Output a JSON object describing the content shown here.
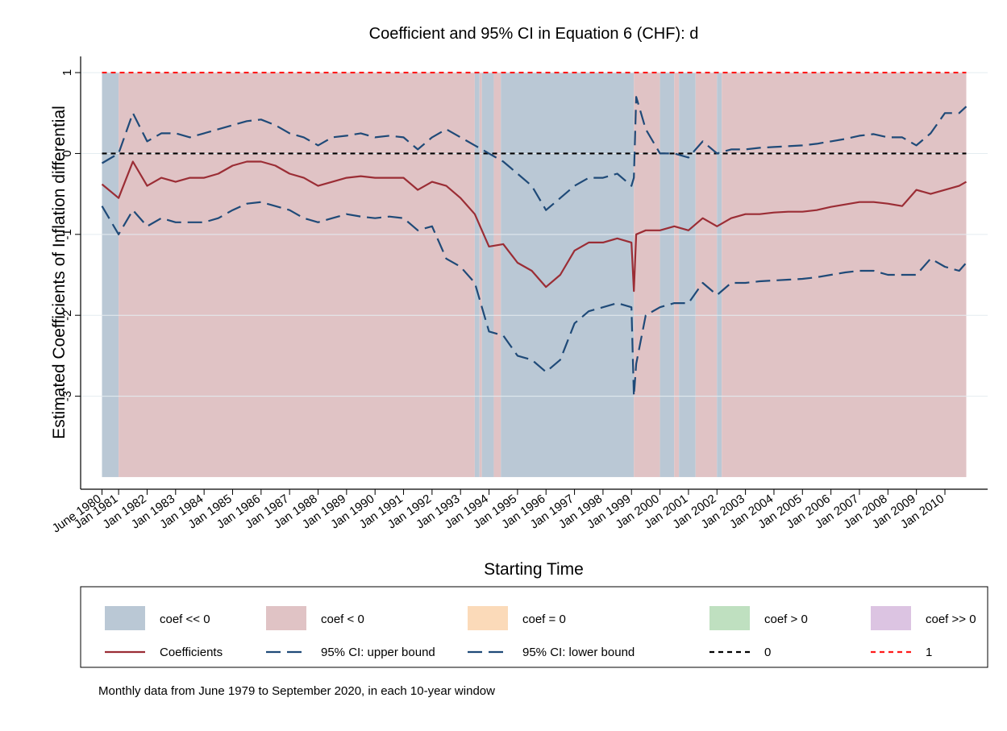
{
  "chart_data": {
    "type": "line",
    "title": "Coefficient and 95% CI in Equation 6 (CHF): d",
    "ylabel": "Estimated Coefficients of Inflation differential",
    "xlabel": "Starting Time",
    "note": "Monthly data from June 1979 to September 2020, in each 10-year window",
    "xlim": [
      "1979-09",
      "2011-07"
    ],
    "ylim": [
      -4.15,
      1.2
    ],
    "yticks": [
      -3,
      -2,
      -1,
      0,
      1
    ],
    "grid": true,
    "xticks": [
      {
        "value": "1980-06",
        "label": "June 1980"
      },
      {
        "value": "1981-01",
        "label": "Jan 1981"
      },
      {
        "value": "1982-01",
        "label": "Jan 1982"
      },
      {
        "value": "1983-01",
        "label": "Jan 1983"
      },
      {
        "value": "1984-01",
        "label": "Jan 1984"
      },
      {
        "value": "1985-01",
        "label": "Jan 1985"
      },
      {
        "value": "1986-01",
        "label": "Jan 1986"
      },
      {
        "value": "1987-01",
        "label": "Jan 1987"
      },
      {
        "value": "1988-01",
        "label": "Jan 1988"
      },
      {
        "value": "1989-01",
        "label": "Jan 1989"
      },
      {
        "value": "1990-01",
        "label": "Jan 1990"
      },
      {
        "value": "1991-01",
        "label": "Jan 1991"
      },
      {
        "value": "1992-01",
        "label": "Jan 1992"
      },
      {
        "value": "1993-01",
        "label": "Jan 1993"
      },
      {
        "value": "1994-01",
        "label": "Jan 1994"
      },
      {
        "value": "1995-01",
        "label": "Jan 1995"
      },
      {
        "value": "1996-01",
        "label": "Jan 1996"
      },
      {
        "value": "1997-01",
        "label": "Jan 1997"
      },
      {
        "value": "1998-01",
        "label": "Jan 1998"
      },
      {
        "value": "1999-01",
        "label": "Jan 1999"
      },
      {
        "value": "2000-01",
        "label": "Jan 2000"
      },
      {
        "value": "2001-01",
        "label": "Jan 2001"
      },
      {
        "value": "2002-01",
        "label": "Jan 2002"
      },
      {
        "value": "2003-01",
        "label": "Jan 2003"
      },
      {
        "value": "2004-01",
        "label": "Jan 2004"
      },
      {
        "value": "2005-01",
        "label": "Jan 2005"
      },
      {
        "value": "2006-01",
        "label": "Jan 2006"
      },
      {
        "value": "2007-01",
        "label": "Jan 2007"
      },
      {
        "value": "2008-01",
        "label": "Jan 2008"
      },
      {
        "value": "2009-01",
        "label": "Jan 2009"
      },
      {
        "value": "2010-01",
        "label": "Jan 2010"
      }
    ],
    "shade_range": [
      -4,
      1
    ],
    "region_classes": [
      {
        "name": "coef << 0",
        "color": "#bac8d5"
      },
      {
        "name": "coef < 0",
        "color": "#e0c3c5"
      },
      {
        "name": "coef = 0",
        "color": "#fbdab9"
      },
      {
        "name": "coef > 0",
        "color": "#bfe0c0"
      },
      {
        "name": "coef >> 0",
        "color": "#dcc4e2"
      }
    ],
    "regions": [
      {
        "start": "1980-06",
        "end": "1981-01",
        "class": "coef << 0"
      },
      {
        "start": "1981-01",
        "end": "1993-07",
        "class": "coef < 0"
      },
      {
        "start": "1993-07",
        "end": "1993-09",
        "class": "coef << 0"
      },
      {
        "start": "1993-09",
        "end": "1993-10",
        "class": "coef < 0"
      },
      {
        "start": "1993-10",
        "end": "1994-03",
        "class": "coef << 0"
      },
      {
        "start": "1994-03",
        "end": "1994-06",
        "class": "coef < 0"
      },
      {
        "start": "1994-06",
        "end": "1999-02",
        "class": "coef << 0"
      },
      {
        "start": "1999-02",
        "end": "2000-01",
        "class": "coef < 0"
      },
      {
        "start": "2000-01",
        "end": "2000-07",
        "class": "coef << 0"
      },
      {
        "start": "2000-07",
        "end": "2000-09",
        "class": "coef < 0"
      },
      {
        "start": "2000-09",
        "end": "2001-04",
        "class": "coef << 0"
      },
      {
        "start": "2001-04",
        "end": "2002-01",
        "class": "coef < 0"
      },
      {
        "start": "2002-01",
        "end": "2002-03",
        "class": "coef << 0"
      },
      {
        "start": "2002-03",
        "end": "2010-10",
        "class": "coef < 0"
      }
    ],
    "x": [
      "1980-06",
      "1981-01",
      "1981-07",
      "1982-01",
      "1982-07",
      "1983-01",
      "1983-07",
      "1984-01",
      "1984-07",
      "1985-01",
      "1985-07",
      "1986-01",
      "1986-07",
      "1987-01",
      "1987-07",
      "1988-01",
      "1988-07",
      "1989-01",
      "1989-07",
      "1990-01",
      "1990-07",
      "1991-01",
      "1991-07",
      "1992-01",
      "1992-07",
      "1993-01",
      "1993-07",
      "1994-01",
      "1994-07",
      "1995-01",
      "1995-07",
      "1996-01",
      "1996-07",
      "1997-01",
      "1997-07",
      "1998-01",
      "1998-07",
      "1999-01",
      "1999-02",
      "1999-03",
      "1999-07",
      "2000-01",
      "2000-07",
      "2001-01",
      "2001-07",
      "2002-01",
      "2002-07",
      "2003-01",
      "2003-07",
      "2004-01",
      "2004-07",
      "2005-01",
      "2005-07",
      "2006-01",
      "2006-07",
      "2007-01",
      "2007-07",
      "2008-01",
      "2008-07",
      "2009-01",
      "2009-07",
      "2010-01",
      "2010-07",
      "2010-10"
    ],
    "series": [
      {
        "name": "Coefficients",
        "color": "#9b2d35",
        "dash": "solid",
        "values": [
          -0.38,
          -0.55,
          -0.1,
          -0.4,
          -0.3,
          -0.35,
          -0.3,
          -0.3,
          -0.25,
          -0.15,
          -0.1,
          -0.1,
          -0.15,
          -0.25,
          -0.3,
          -0.4,
          -0.35,
          -0.3,
          -0.28,
          -0.3,
          -0.3,
          -0.3,
          -0.45,
          -0.35,
          -0.4,
          -0.55,
          -0.75,
          -1.15,
          -1.12,
          -1.35,
          -1.45,
          -1.65,
          -1.5,
          -1.2,
          -1.1,
          -1.1,
          -1.05,
          -1.1,
          -1.7,
          -1.0,
          -0.95,
          -0.95,
          -0.9,
          -0.95,
          -0.8,
          -0.9,
          -0.8,
          -0.75,
          -0.75,
          -0.73,
          -0.72,
          -0.72,
          -0.7,
          -0.66,
          -0.63,
          -0.6,
          -0.6,
          -0.62,
          -0.65,
          -0.45,
          -0.5,
          -0.45,
          -0.4,
          -0.35
        ]
      },
      {
        "name": "95% CI: upper bound",
        "color": "#1f4a78",
        "dash": "long",
        "values": [
          -0.12,
          0.0,
          0.5,
          0.15,
          0.25,
          0.25,
          0.2,
          0.25,
          0.3,
          0.35,
          0.4,
          0.42,
          0.35,
          0.25,
          0.2,
          0.1,
          0.2,
          0.22,
          0.25,
          0.2,
          0.22,
          0.2,
          0.05,
          0.2,
          0.3,
          0.2,
          0.1,
          0.0,
          -0.1,
          -0.25,
          -0.4,
          -0.7,
          -0.55,
          -0.4,
          -0.3,
          -0.3,
          -0.25,
          -0.4,
          -0.3,
          0.7,
          0.3,
          0.0,
          0.0,
          -0.05,
          0.15,
          0.0,
          0.05,
          0.05,
          0.07,
          0.08,
          0.09,
          0.1,
          0.12,
          0.15,
          0.18,
          0.22,
          0.24,
          0.2,
          0.2,
          0.1,
          0.25,
          0.5,
          0.5,
          0.58
        ]
      },
      {
        "name": "95% CI: lower bound",
        "color": "#1f4a78",
        "dash": "long",
        "values": [
          -0.65,
          -1.0,
          -0.7,
          -0.9,
          -0.8,
          -0.85,
          -0.85,
          -0.85,
          -0.8,
          -0.7,
          -0.62,
          -0.6,
          -0.65,
          -0.7,
          -0.8,
          -0.85,
          -0.8,
          -0.75,
          -0.78,
          -0.8,
          -0.78,
          -0.8,
          -0.95,
          -0.9,
          -1.3,
          -1.4,
          -1.6,
          -2.2,
          -2.25,
          -2.5,
          -2.55,
          -2.7,
          -2.55,
          -2.1,
          -1.95,
          -1.9,
          -1.85,
          -1.9,
          -3.0,
          -2.6,
          -2.0,
          -1.9,
          -1.85,
          -1.85,
          -1.6,
          -1.75,
          -1.6,
          -1.6,
          -1.58,
          -1.57,
          -1.56,
          -1.55,
          -1.53,
          -1.5,
          -1.47,
          -1.45,
          -1.45,
          -1.5,
          -1.5,
          -1.5,
          -1.3,
          -1.4,
          -1.45,
          -1.35
        ]
      }
    ],
    "reference_lines": [
      {
        "name": "0",
        "value": 0,
        "color": "#000000",
        "dash": "short"
      },
      {
        "name": "1",
        "value": 1,
        "color": "#ff1a1a",
        "dash": "short"
      }
    ]
  }
}
